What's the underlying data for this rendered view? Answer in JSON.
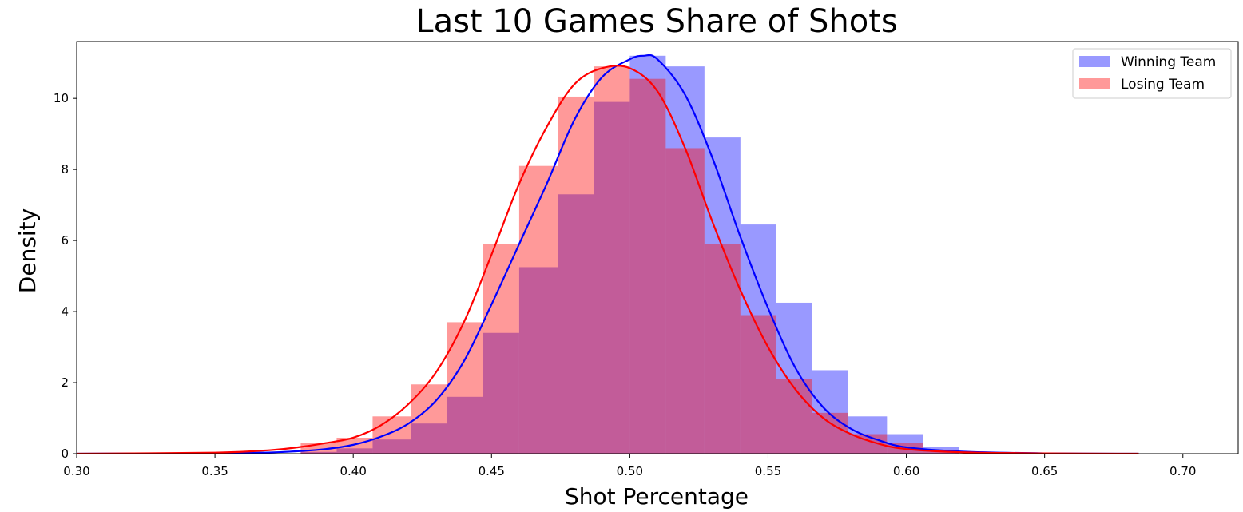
{
  "chart_data": {
    "type": "bar",
    "title": "Last 10 Games Share of Shots",
    "xlabel": "Shot Percentage",
    "ylabel": "Density",
    "xlim": [
      0.3,
      0.72
    ],
    "ylim": [
      0,
      11.6
    ],
    "xticks": [
      "0.30",
      "0.35",
      "0.40",
      "0.45",
      "0.50",
      "0.55",
      "0.60",
      "0.65",
      "0.70"
    ],
    "yticks": [
      "0",
      "2",
      "4",
      "6",
      "8",
      "10"
    ],
    "grid": false,
    "legend_position": "top-right",
    "bin_edges": [
      0.381,
      0.394,
      0.407,
      0.421,
      0.434,
      0.447,
      0.46,
      0.474,
      0.487,
      0.5,
      0.513,
      0.527,
      0.54,
      0.553,
      0.566,
      0.579,
      0.593,
      0.606,
      0.619
    ],
    "series": [
      {
        "name": "Winning Team",
        "color": "#0000ff",
        "hist_alpha": 0.4,
        "hist": [
          0.05,
          0.15,
          0.4,
          0.85,
          1.6,
          3.4,
          5.25,
          7.3,
          9.9,
          11.2,
          10.9,
          8.9,
          6.45,
          4.25,
          2.35,
          1.05,
          0.55,
          0.2
        ],
        "kde_x": [
          0.3,
          0.36,
          0.38,
          0.39,
          0.4,
          0.41,
          0.42,
          0.43,
          0.44,
          0.45,
          0.46,
          0.47,
          0.48,
          0.49,
          0.5,
          0.505,
          0.51,
          0.52,
          0.53,
          0.54,
          0.55,
          0.56,
          0.57,
          0.58,
          0.59,
          0.6,
          0.62,
          0.65,
          0.684
        ],
        "kde_y": [
          0.0,
          0.02,
          0.07,
          0.13,
          0.25,
          0.48,
          0.85,
          1.5,
          2.6,
          4.2,
          5.9,
          7.6,
          9.4,
          10.6,
          11.1,
          11.2,
          11.1,
          10.1,
          8.3,
          6.1,
          4.1,
          2.4,
          1.3,
          0.7,
          0.38,
          0.18,
          0.06,
          0.01,
          0.0
        ]
      },
      {
        "name": "Losing Team",
        "color": "#ff0000",
        "hist_alpha": 0.4,
        "hist": [
          0.3,
          0.45,
          1.05,
          1.95,
          3.7,
          5.9,
          8.1,
          10.05,
          10.9,
          10.55,
          8.6,
          5.9,
          3.9,
          2.1,
          1.15,
          0.55,
          0.3,
          0.1
        ],
        "kde_x": [
          0.3,
          0.35,
          0.37,
          0.38,
          0.39,
          0.4,
          0.41,
          0.42,
          0.43,
          0.44,
          0.45,
          0.46,
          0.47,
          0.48,
          0.49,
          0.5,
          0.51,
          0.52,
          0.53,
          0.54,
          0.55,
          0.56,
          0.57,
          0.58,
          0.59,
          0.6,
          0.62,
          0.65,
          0.684
        ],
        "kde_y": [
          0.0,
          0.03,
          0.1,
          0.18,
          0.3,
          0.45,
          0.8,
          1.4,
          2.3,
          3.7,
          5.6,
          7.6,
          9.2,
          10.4,
          10.85,
          10.85,
          10.2,
          8.6,
          6.5,
          4.6,
          3.0,
          1.8,
          1.0,
          0.55,
          0.28,
          0.13,
          0.04,
          0.01,
          0.0
        ]
      }
    ]
  }
}
